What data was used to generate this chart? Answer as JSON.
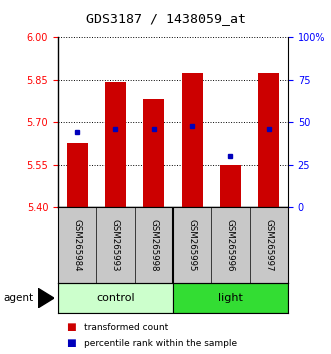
{
  "title": "GDS3187 / 1438059_at",
  "samples": [
    "GSM265984",
    "GSM265993",
    "GSM265998",
    "GSM265995",
    "GSM265996",
    "GSM265997"
  ],
  "bar_values": [
    5.625,
    5.84,
    5.78,
    5.875,
    5.548,
    5.875
  ],
  "percentile_values": [
    44,
    46,
    46,
    48,
    30,
    46
  ],
  "y_min": 5.4,
  "y_max": 6.0,
  "y_ticks": [
    5.4,
    5.55,
    5.7,
    5.85,
    6.0
  ],
  "right_y_ticks": [
    0,
    25,
    50,
    75,
    100
  ],
  "right_y_labels": [
    "0",
    "25",
    "50",
    "75",
    "100%"
  ],
  "bar_color": "#cc0000",
  "dot_color": "#0000bb",
  "bar_width": 0.55,
  "background_color": "#ffffff",
  "control_color": "#ccffcc",
  "light_color": "#33dd33",
  "label_bg_color": "#c8c8c8",
  "legend_items": [
    "transformed count",
    "percentile rank within the sample"
  ]
}
